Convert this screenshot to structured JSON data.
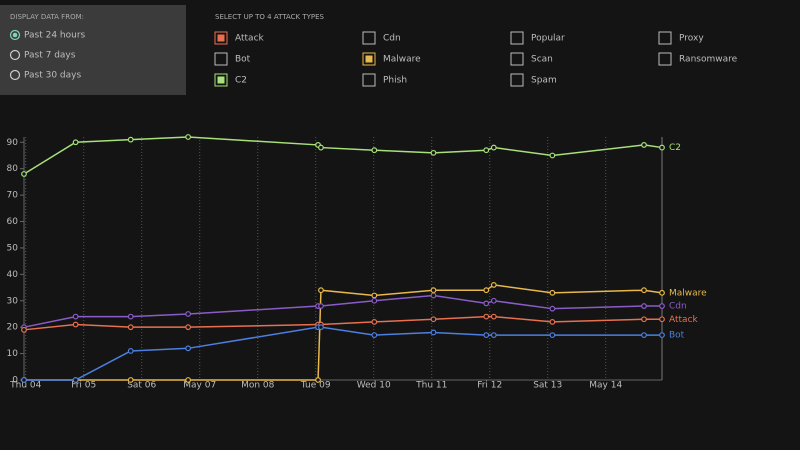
{
  "display_panel": {
    "title": "DISPLAY DATA FROM:",
    "options": [
      "Past 24 hours",
      "Past 7 days",
      "Past 30 days"
    ],
    "selected": 0
  },
  "attack_types": {
    "title": "SELECT UP TO 4 ATTACK TYPES",
    "options": [
      {
        "label": "Attack",
        "checked": true,
        "color": "#e8704f"
      },
      {
        "label": "Bot",
        "checked": false
      },
      {
        "label": "C2",
        "checked": true,
        "color": "#a8e07a"
      },
      {
        "label": "Cdn",
        "checked": false
      },
      {
        "label": "Malware",
        "checked": true,
        "color": "#e8b84a"
      },
      {
        "label": "Phish",
        "checked": false
      },
      {
        "label": "Popular",
        "checked": false
      },
      {
        "label": "Scan",
        "checked": false
      },
      {
        "label": "Spam",
        "checked": false
      },
      {
        "label": "Proxy",
        "checked": false
      },
      {
        "label": "Ransomware",
        "checked": false
      }
    ]
  },
  "chart_data": {
    "type": "line",
    "x": [
      3.97,
      4.86,
      5.81,
      6.8,
      9.04,
      9.09,
      10.01,
      11.03,
      11.94,
      12.07,
      13.08,
      14.66,
      14.97
    ],
    "series": [
      {
        "name": "C2",
        "color": "#a8e07a",
        "values": [
          78,
          90,
          91,
          92,
          89,
          88,
          87,
          86,
          87,
          88,
          85,
          89,
          88
        ]
      },
      {
        "name": "Malware",
        "color": "#e8b84a",
        "values": [
          0,
          0,
          0,
          0,
          0,
          34,
          32,
          34,
          34,
          36,
          33,
          34,
          33
        ]
      },
      {
        "name": "Cdn",
        "color": "#8a5cc8",
        "values": [
          20,
          24,
          24,
          25,
          28,
          28,
          30,
          32,
          29,
          30,
          27,
          28,
          28
        ]
      },
      {
        "name": "Attack",
        "color": "#e8704f",
        "values": [
          19,
          21,
          20,
          20,
          21,
          21,
          22,
          23,
          24,
          24,
          22,
          23,
          23
        ]
      },
      {
        "name": "Bot",
        "color": "#4c7fe0",
        "values": [
          0,
          0,
          11,
          12,
          20,
          20,
          17,
          18,
          17,
          17,
          17,
          17,
          17
        ]
      }
    ],
    "xlim": [
      3.97,
      14.97
    ],
    "xticks": [
      {
        "value": 4,
        "label": "Thu 04"
      },
      {
        "value": 5,
        "label": "Fri 05"
      },
      {
        "value": 6,
        "label": "Sat 06"
      },
      {
        "value": 7,
        "label": "May 07"
      },
      {
        "value": 8,
        "label": "Mon 08"
      },
      {
        "value": 9,
        "label": "Tue 09"
      },
      {
        "value": 10,
        "label": "Wed 10"
      },
      {
        "value": 11,
        "label": "Thu 11"
      },
      {
        "value": 12,
        "label": "Fri 12"
      },
      {
        "value": 13,
        "label": "Sat 13"
      },
      {
        "value": 14,
        "label": "May 14"
      }
    ],
    "ylim": [
      0,
      92
    ],
    "yticks": [
      0,
      10,
      20,
      30,
      40,
      50,
      60,
      70,
      80,
      90
    ],
    "grid": true
  }
}
